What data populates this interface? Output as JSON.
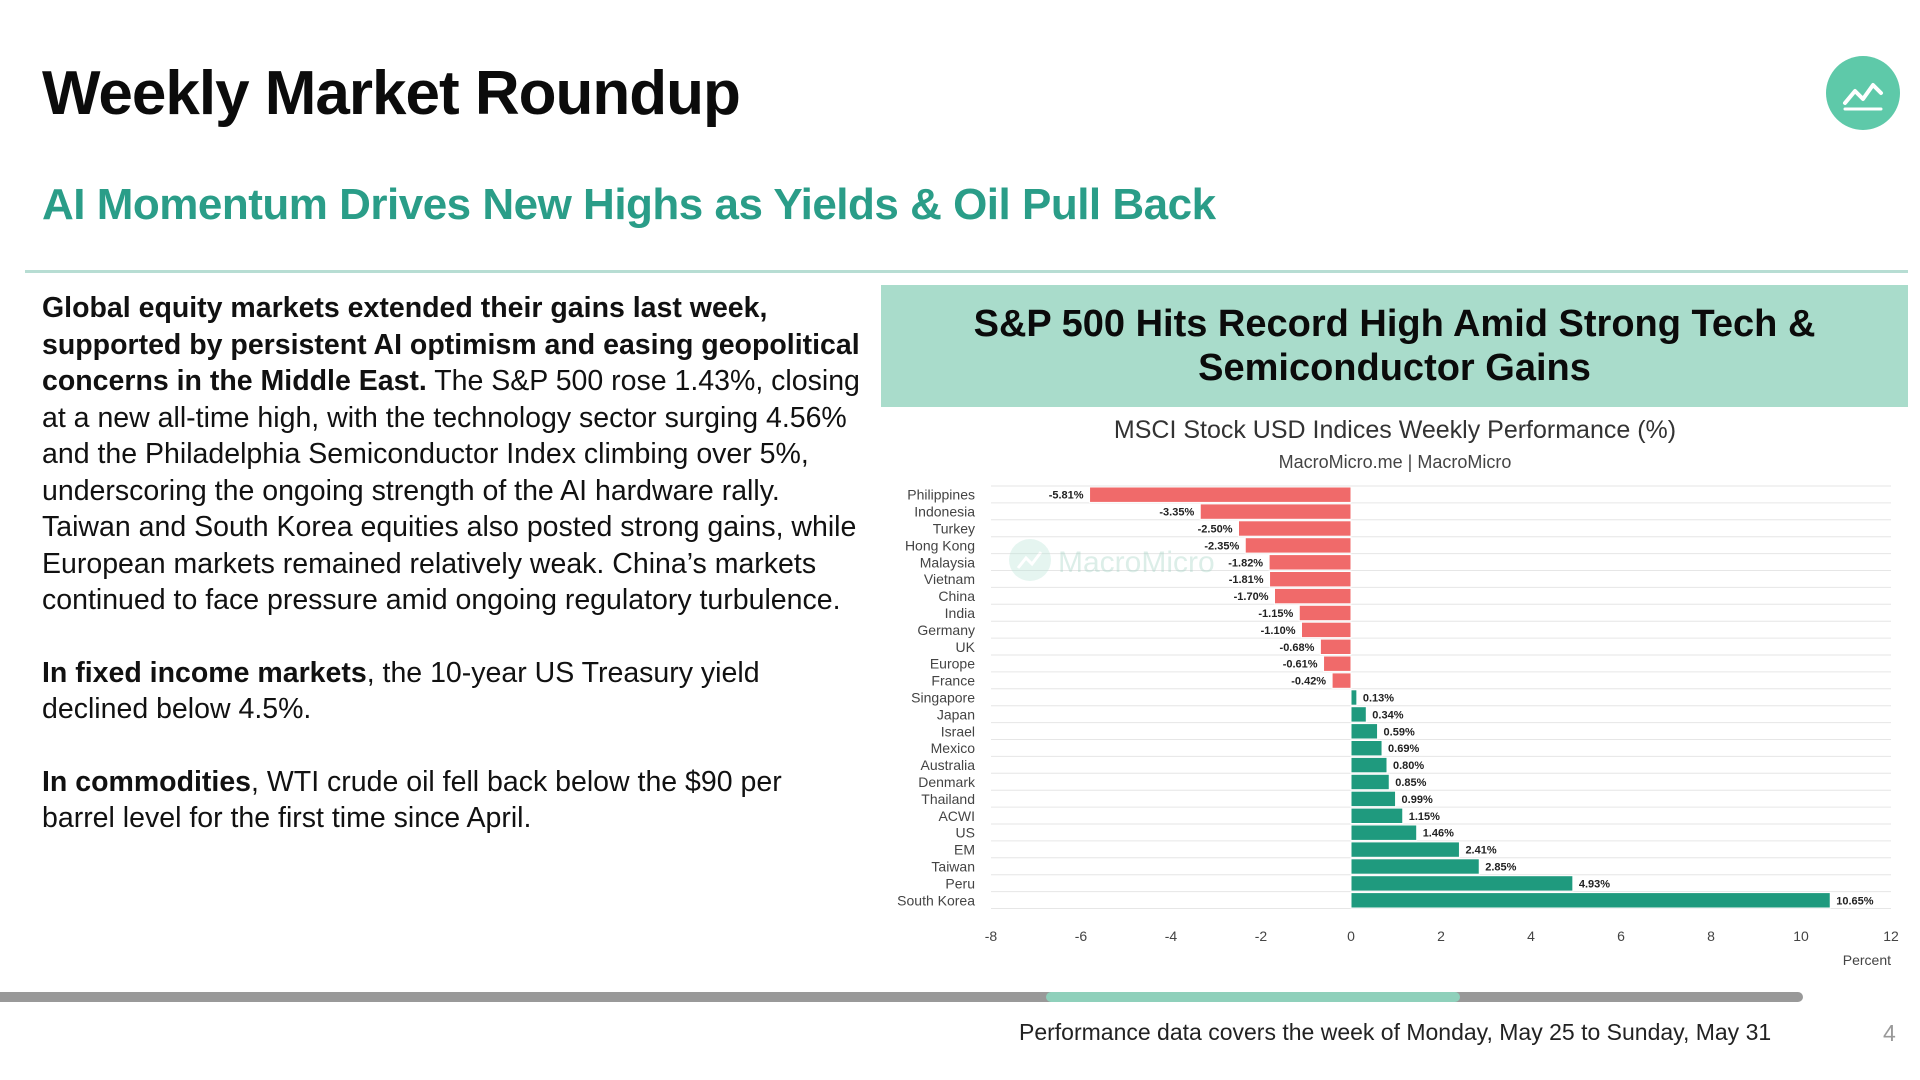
{
  "slide": {
    "title": "Weekly Market Roundup",
    "subtitle": "AI Momentum Drives New Highs as Yields & Oil Pull Back",
    "logo_icon": "trend-chart-icon",
    "accent_color": "#2a9d88",
    "page_number": "4",
    "footer_note": "Performance data covers the week of Monday, May 25 to Sunday, May 31",
    "progress": 0.81,
    "progress_highlight_start": 0.58
  },
  "body": {
    "p1_bold": "Global equity markets extended their gains last week, supported by persistent AI optimism and easing geopolitical concerns in the Middle East.",
    "p1_rest": " The S&P 500 rose 1.43%, closing at a new all-time high, with the technology sector surging 4.56% and the Philadelphia Semiconductor Index climbing over 5%, underscoring the ongoing strength of the AI hardware rally. Taiwan and South Korea equities also posted strong gains, while European markets remained relatively weak. China’s markets continued to face pressure amid ongoing regulatory turbulence.",
    "p2_bold": "In fixed income markets",
    "p2_rest": ", the 10-year US Treasury yield declined below 4.5%.",
    "p3_bold": "In commodities",
    "p3_rest": ", WTI crude oil fell back below the $90 per barrel level for the first time since April."
  },
  "chart_header": "S&P 500 Hits Record High Amid Strong Tech & Semiconductor Gains",
  "chart_data": {
    "type": "bar",
    "orientation": "horizontal",
    "title": "MSCI Stock USD Indices Weekly Performance (%)",
    "subtitle": "MacroMicro.me | MacroMicro",
    "watermark": "MacroMicro",
    "xlabel": "Percent",
    "xlim": [
      -8,
      12
    ],
    "xticks": [
      -8,
      -6,
      -4,
      -2,
      0,
      2,
      4,
      6,
      8,
      10,
      12
    ],
    "grid": true,
    "categories": [
      "Philippines",
      "Indonesia",
      "Turkey",
      "Hong Kong",
      "Malaysia",
      "Vietnam",
      "China",
      "India",
      "Germany",
      "UK",
      "Europe",
      "France",
      "Singapore",
      "Japan",
      "Israel",
      "Mexico",
      "Australia",
      "Denmark",
      "Thailand",
      "ACWI",
      "US",
      "EM",
      "Taiwan",
      "Peru",
      "South Korea"
    ],
    "values": [
      -5.81,
      -3.35,
      -2.5,
      -2.35,
      -1.82,
      -1.81,
      -1.7,
      -1.15,
      -1.1,
      -0.68,
      -0.61,
      -0.42,
      0.13,
      0.34,
      0.59,
      0.69,
      0.8,
      0.85,
      0.99,
      1.15,
      1.46,
      2.41,
      2.85,
      4.93,
      10.65
    ],
    "data_labels": [
      "-5.81%",
      "-3.35%",
      "-2.50%",
      "-2.35%",
      "-1.82%",
      "-1.81%",
      "-1.70%",
      "-1.15%",
      "-1.10%",
      "-0.68%",
      "-0.61%",
      "-0.42%",
      "0.13%",
      "0.34%",
      "0.59%",
      "0.69%",
      "0.80%",
      "0.85%",
      "0.99%",
      "1.15%",
      "1.46%",
      "2.41%",
      "2.85%",
      "4.93%",
      "10.65%"
    ],
    "colors": {
      "negative": "#f06a6a",
      "positive": "#1f9a7e"
    }
  }
}
